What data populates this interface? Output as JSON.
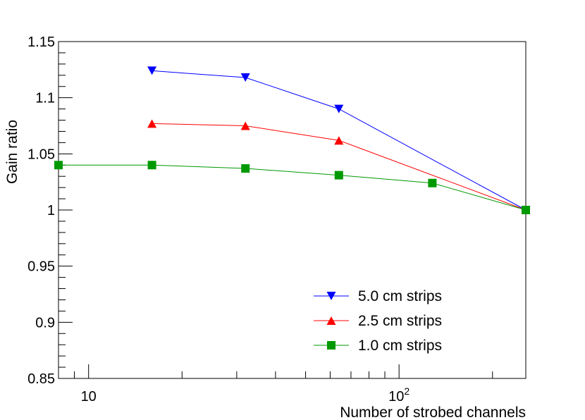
{
  "chart_data": {
    "type": "line",
    "xscale": "log",
    "xlabel": "Number of strobed channels",
    "ylabel": "Gain ratio",
    "xlim": [
      8,
      256
    ],
    "ylim": [
      0.85,
      1.15
    ],
    "x_ticks": [
      {
        "value": 10,
        "label": "10",
        "sup": ""
      },
      {
        "value": 100,
        "label": "10",
        "sup": "2"
      }
    ],
    "y_ticks": [
      {
        "value": 0.85,
        "label": "0.85"
      },
      {
        "value": 0.9,
        "label": "0.9"
      },
      {
        "value": 0.95,
        "label": "0.95"
      },
      {
        "value": 1.0,
        "label": "1"
      },
      {
        "value": 1.05,
        "label": "1.05"
      },
      {
        "value": 1.1,
        "label": "1.1"
      },
      {
        "value": 1.15,
        "label": "1.15"
      }
    ],
    "legend_position": "bottom-right",
    "series": [
      {
        "name": "5.0 cm strips",
        "color": "#0000ff",
        "marker": "triangle-down",
        "x": [
          16,
          32,
          64,
          256
        ],
        "values": [
          1.124,
          1.118,
          1.09,
          1.0
        ]
      },
      {
        "name": "2.5 cm strips",
        "color": "#ff0000",
        "marker": "triangle-up",
        "x": [
          16,
          32,
          64,
          256
        ],
        "values": [
          1.077,
          1.075,
          1.062,
          1.0
        ]
      },
      {
        "name": "1.0 cm strips",
        "color": "#009900",
        "marker": "square",
        "x": [
          8,
          16,
          32,
          64,
          128,
          256
        ],
        "values": [
          1.04,
          1.04,
          1.037,
          1.031,
          1.024,
          1.0
        ]
      }
    ]
  }
}
